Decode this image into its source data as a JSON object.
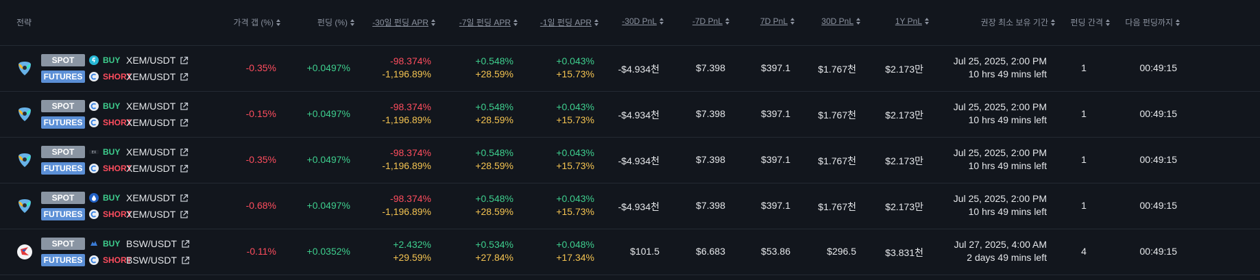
{
  "headers": {
    "strategy": "전략",
    "price_gap": "가격 갭 (%)",
    "funding": "펀딩 (%)",
    "apr30": "-30일 펀딩 APR",
    "apr7": "-7일 펀딩 APR",
    "apr1": "-1일 펀딩 APR",
    "pnl30neg": "-30D PnL",
    "pnl7neg": "-7D PnL",
    "pnl7": "7D PnL",
    "pnl30": "30D PnL",
    "pnl1y": "1Y PnL",
    "min_hold": "권장 최소 보유 기간",
    "interval": "펀딩 간격",
    "next_funding": "다음 펀딩까지"
  },
  "labels": {
    "spot": "SPOT",
    "futures": "FUTURES",
    "buy": "BUY",
    "short": "SHORT"
  },
  "icons": {
    "external": "external-link-icon",
    "sort": "sort-icon"
  },
  "colors": {
    "negative": "#ff4d5e",
    "positive": "#3ecf8e",
    "apr": "#f5c451",
    "spot_badge": "#8a95a3",
    "futures_badge": "#5b8fd6"
  },
  "rows": [
    {
      "coin_icon": "nem-xem-icon",
      "spot_exchange_icon": "exchange-s-icon",
      "futures_exchange_icon": "exchange-futures-icon",
      "spot_pair": "XEM/USDT",
      "futures_pair": "XEM/USDT",
      "price_gap": "-0.35%",
      "funding": "+0.0497%",
      "apr30_top": "-98.374%",
      "apr30_bot": "-1,196.89%",
      "apr7_top": "+0.548%",
      "apr7_bot": "+28.59%",
      "apr1_top": "+0.043%",
      "apr1_bot": "+15.73%",
      "pnl30neg": "-$4.934천",
      "pnl7neg": "$7.398",
      "pnl7": "$397.1",
      "pnl30": "$1.767천",
      "pnl1y": "$2.173만",
      "hold_date": "Jul 25, 2025, 2:00 PM",
      "hold_left": "10 hrs 49 mins left",
      "interval": "1",
      "next": "00:49:15"
    },
    {
      "coin_icon": "nem-xem-icon",
      "spot_exchange_icon": "exchange-c-icon",
      "futures_exchange_icon": "exchange-futures-icon",
      "spot_pair": "XEM/USDT",
      "futures_pair": "XEM/USDT",
      "price_gap": "-0.15%",
      "funding": "+0.0497%",
      "apr30_top": "-98.374%",
      "apr30_bot": "-1,196.89%",
      "apr7_top": "+0.548%",
      "apr7_bot": "+28.59%",
      "apr1_top": "+0.043%",
      "apr1_bot": "+15.73%",
      "pnl30neg": "-$4.934천",
      "pnl7neg": "$7.398",
      "pnl7": "$397.1",
      "pnl30": "$1.767천",
      "pnl1y": "$2.173만",
      "hold_date": "Jul 25, 2025, 2:00 PM",
      "hold_left": "10 hrs 49 mins left",
      "interval": "1",
      "next": "00:49:15"
    },
    {
      "coin_icon": "nem-xem-icon",
      "spot_exchange_icon": "exchange-dark-icon",
      "futures_exchange_icon": "exchange-futures-icon",
      "spot_pair": "XEM/USDT",
      "futures_pair": "XEM/USDT",
      "price_gap": "-0.35%",
      "funding": "+0.0497%",
      "apr30_top": "-98.374%",
      "apr30_bot": "-1,196.89%",
      "apr7_top": "+0.548%",
      "apr7_bot": "+28.59%",
      "apr1_top": "+0.043%",
      "apr1_bot": "+15.73%",
      "pnl30neg": "-$4.934천",
      "pnl7neg": "$7.398",
      "pnl7": "$397.1",
      "pnl30": "$1.767천",
      "pnl1y": "$2.173만",
      "hold_date": "Jul 25, 2025, 2:00 PM",
      "hold_left": "10 hrs 49 mins left",
      "interval": "1",
      "next": "00:49:15"
    },
    {
      "coin_icon": "nem-xem-icon",
      "spot_exchange_icon": "exchange-drop-icon",
      "futures_exchange_icon": "exchange-futures-icon",
      "spot_pair": "XEM/USDT",
      "futures_pair": "XEM/USDT",
      "price_gap": "-0.68%",
      "funding": "+0.0497%",
      "apr30_top": "-98.374%",
      "apr30_bot": "-1,196.89%",
      "apr7_top": "+0.548%",
      "apr7_bot": "+28.59%",
      "apr1_top": "+0.043%",
      "apr1_bot": "+15.73%",
      "pnl30neg": "-$4.934천",
      "pnl7neg": "$7.398",
      "pnl7": "$397.1",
      "pnl30": "$1.767천",
      "pnl1y": "$2.173만",
      "hold_date": "Jul 25, 2025, 2:00 PM",
      "hold_left": "10 hrs 49 mins left",
      "interval": "1",
      "next": "00:49:15"
    },
    {
      "coin_icon": "biswap-bsw-icon",
      "spot_exchange_icon": "exchange-cloud-icon",
      "futures_exchange_icon": "exchange-futures-icon",
      "spot_pair": "BSW/USDT",
      "futures_pair": "BSW/USDT",
      "price_gap": "-0.11%",
      "funding": "+0.0352%",
      "apr30_top": "+2.432%",
      "apr30_bot": "+29.59%",
      "apr7_top": "+0.534%",
      "apr7_bot": "+27.84%",
      "apr1_top": "+0.048%",
      "apr1_bot": "+17.34%",
      "pnl30neg": "$101.5",
      "pnl7neg": "$6.683",
      "pnl7": "$53.86",
      "pnl30": "$296.5",
      "pnl1y": "$3.831천",
      "hold_date": "Jul 27, 2025, 4:00 AM",
      "hold_left": "2 days 49 mins left",
      "interval": "4",
      "next": "00:49:15"
    }
  ]
}
